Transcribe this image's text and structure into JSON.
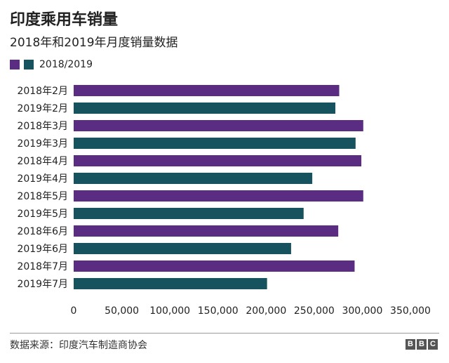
{
  "header": {
    "title": "印度乘用车销量",
    "subtitle": "2018年和2019年月度销量数据"
  },
  "legend": {
    "label": "2018/2019"
  },
  "colors": {
    "series_2018": "#5a2d82",
    "series_2019": "#17535f"
  },
  "footer": {
    "source": "数据来源：印度汽车制造商协会",
    "logo": [
      "B",
      "B",
      "C"
    ]
  },
  "chart_data": {
    "type": "bar",
    "orientation": "horizontal",
    "categories": [
      "2018年2月",
      "2019年2月",
      "2018年3月",
      "2019年3月",
      "2018年4月",
      "2019年4月",
      "2018年5月",
      "2019年5月",
      "2018年6月",
      "2019年6月",
      "2018年7月",
      "2019年7月"
    ],
    "values": [
      276000,
      272000,
      301000,
      293000,
      299000,
      248000,
      301000,
      239000,
      275000,
      226000,
      292000,
      201000
    ],
    "bar_years": [
      "2018",
      "2019",
      "2018",
      "2019",
      "2018",
      "2019",
      "2018",
      "2019",
      "2018",
      "2019",
      "2018",
      "2019"
    ],
    "title": "印度乘用车销量",
    "subtitle": "2018年和2019年月度销量数据",
    "xlim": [
      0,
      350000
    ],
    "xticks": [
      "0",
      "50,000",
      "100,000",
      "150,000",
      "200,000",
      "250,000",
      "300,000",
      "350,000"
    ],
    "xtick_values": [
      0,
      50000,
      100000,
      150000,
      200000,
      250000,
      300000,
      350000
    ],
    "legend_entries": [
      "2018/2019"
    ],
    "legend_position": "top-left",
    "grid": false
  }
}
